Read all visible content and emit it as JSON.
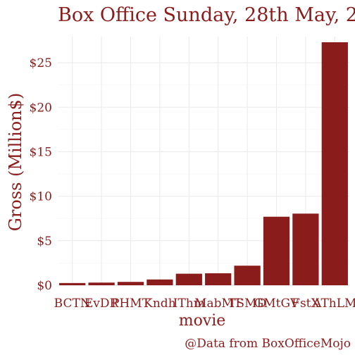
{
  "chart_data": {
    "type": "bar",
    "title": "Box Office Sunday, 28th May, 2",
    "xlabel": "movie",
    "ylabel": "Gross (Million$)",
    "caption": "@Data from BoxOfficeMojo",
    "categories": [
      "BCTN",
      "EvDR",
      "PHMT",
      "Kndh",
      "IThm",
      "MabMT",
      "TSMD",
      "GMtGV",
      "FstX",
      "AThLM"
    ],
    "values": [
      0.25,
      0.3,
      0.38,
      0.65,
      1.3,
      1.35,
      2.2,
      7.7,
      8.05,
      27.3
    ],
    "yticks": [
      0,
      5,
      10,
      15,
      20,
      25
    ],
    "ytick_labels": [
      "$0",
      "$5",
      "$10",
      "$15",
      "$20",
      "$25"
    ],
    "ylim": [
      0,
      27.3
    ],
    "grid": true,
    "legend": "none",
    "bar_color": "#8b1c1c",
    "text_color": "#8b1c1c"
  }
}
